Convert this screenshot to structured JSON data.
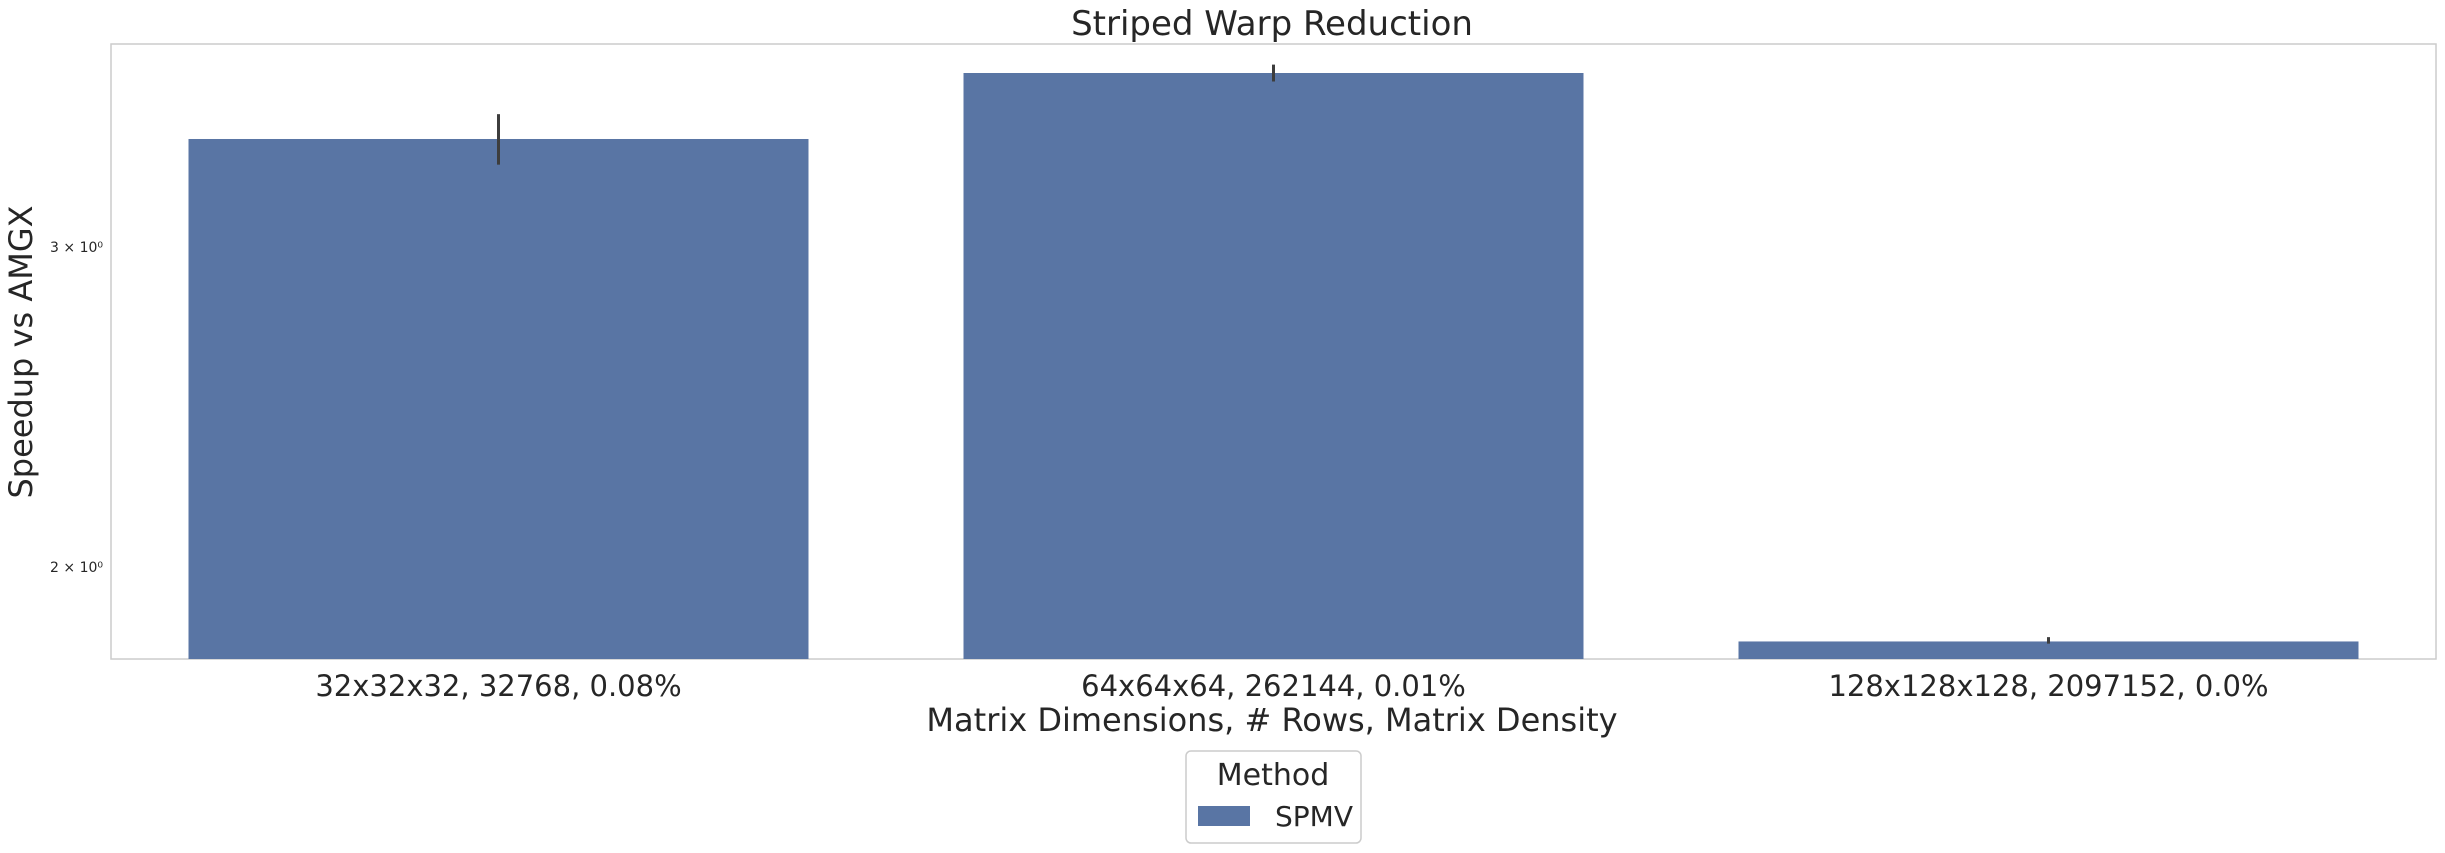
{
  "chart_data": {
    "type": "bar",
    "title": "Striped Warp Reduction",
    "xlabel": "Matrix Dimensions, # Rows, Matrix Density",
    "ylabel": "Speedup vs AMGX",
    "yscale": "log",
    "ylim": [
      1.78,
      3.88
    ],
    "yticks": [
      {
        "value": 2,
        "label": "2 × 10⁰"
      },
      {
        "value": 3,
        "label": "3 × 10⁰"
      }
    ],
    "grid": false,
    "categories": [
      "32x32x32, 32768, 0.08%",
      "64x64x64, 262144, 0.01%",
      "128x128x128, 2097152, 0.0%"
    ],
    "series": [
      {
        "name": "SPMV",
        "color": "#5975a4",
        "values": [
          3.44,
          3.74,
          1.82
        ],
        "error_low": [
          3.33,
          3.7,
          1.815
        ],
        "error_high": [
          3.55,
          3.78,
          1.83
        ]
      }
    ],
    "legend": {
      "title": "Method",
      "placement": "bottom-center"
    }
  }
}
